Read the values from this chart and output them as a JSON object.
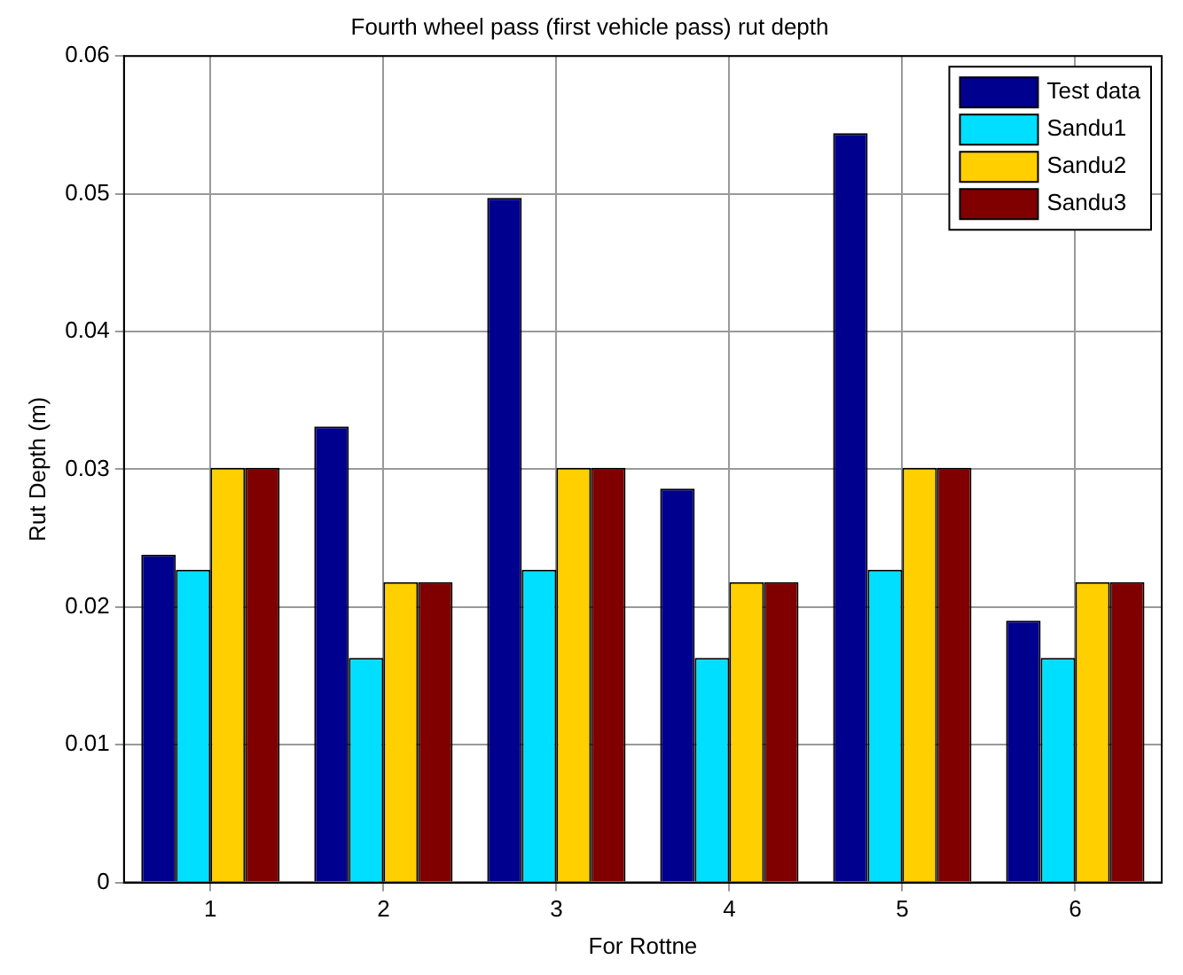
{
  "chart_data": {
    "type": "bar",
    "title": "Fourth wheel pass (first vehicle pass) rut depth",
    "xlabel": "For Rottne",
    "ylabel": "Rut Depth (m)",
    "categories": [
      "1",
      "2",
      "3",
      "4",
      "5",
      "6"
    ],
    "series": [
      {
        "name": "Test data",
        "color": "#00008f",
        "values": [
          0.0238,
          0.0331,
          0.0497,
          0.0286,
          0.0544,
          0.019
        ]
      },
      {
        "name": "Sandu1",
        "color": "#00dfff",
        "values": [
          0.0227,
          0.0163,
          0.0227,
          0.0163,
          0.0227,
          0.0163
        ]
      },
      {
        "name": "Sandu2",
        "color": "#ffcf00",
        "values": [
          0.0301,
          0.0218,
          0.0301,
          0.0218,
          0.0301,
          0.0218
        ]
      },
      {
        "name": "Sandu3",
        "color": "#800000",
        "values": [
          0.0301,
          0.0218,
          0.0301,
          0.0218,
          0.0301,
          0.0218
        ]
      }
    ],
    "ylim": [
      0,
      0.06
    ],
    "yticks": [
      0,
      0.01,
      0.02,
      0.03,
      0.04,
      0.05,
      0.06
    ],
    "grid": true,
    "legend": "top right"
  }
}
